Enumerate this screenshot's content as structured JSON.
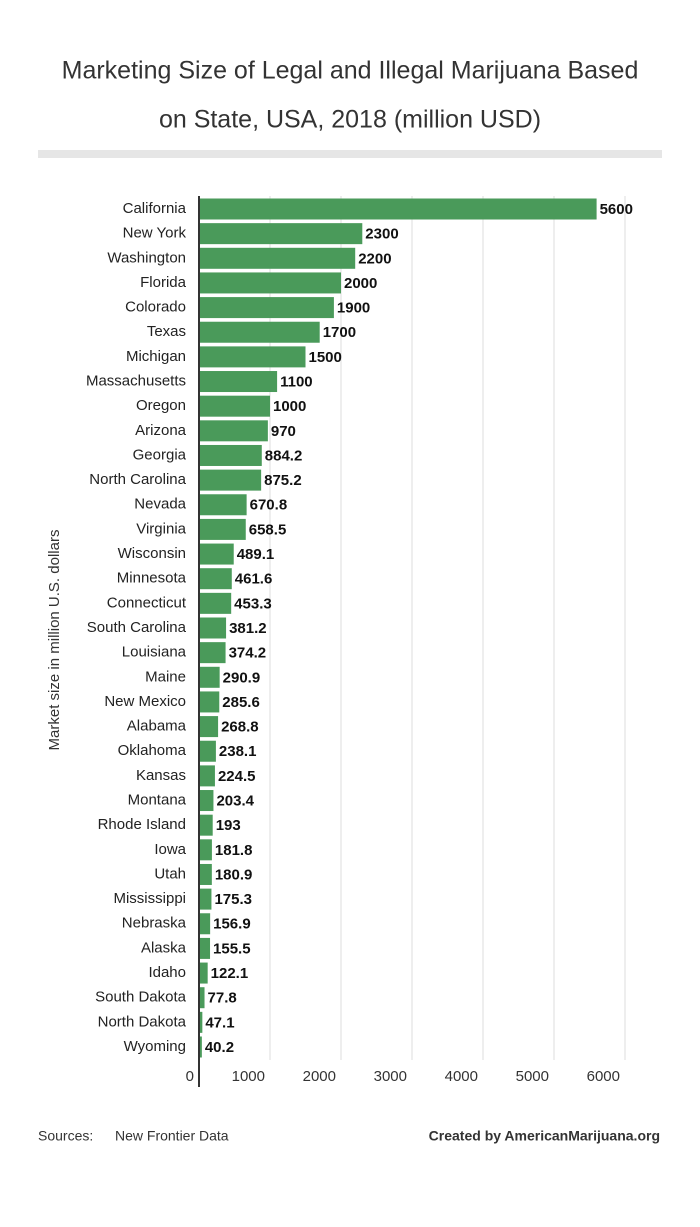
{
  "chart_data": {
    "type": "bar",
    "orientation": "horizontal",
    "title": [
      "Marketing Size of Legal and Illegal Marijuana Based",
      "on State, USA, 2018 (million USD)"
    ],
    "y_label": "Market size in million U.S. dollars",
    "categories": [
      "California",
      "New York",
      "Washington",
      "Florida",
      "Colorado",
      "Texas",
      "Michigan",
      "Massachusetts",
      "Oregon",
      "Arizona",
      "Georgia",
      "North Carolina",
      "Nevada",
      "Virginia",
      "Wisconsin",
      "Minnesota",
      "Connecticut",
      "South Carolina",
      "Louisiana",
      "Maine",
      "New Mexico",
      "Alabama",
      "Oklahoma",
      "Kansas",
      "Montana",
      "Rhode Island",
      "Iowa",
      "Utah",
      "Mississippi",
      "Nebraska",
      "Alaska",
      "Idaho",
      "South Dakota",
      "North Dakota",
      "Wyoming"
    ],
    "values": [
      5600,
      2300,
      2200,
      2000,
      1900,
      1700,
      1500,
      1100,
      1000,
      970,
      884.2,
      875.2,
      670.8,
      658.5,
      489.1,
      461.6,
      453.3,
      381.2,
      374.2,
      290.9,
      285.6,
      268.8,
      238.1,
      224.5,
      203.4,
      193,
      181.8,
      180.9,
      175.3,
      156.9,
      155.5,
      122.1,
      77.8,
      47.1,
      40.2
    ],
    "color": "#4a9a5a",
    "xlim": [
      0,
      6000
    ],
    "xticks": [
      0,
      1000,
      2000,
      3000,
      4000,
      5000,
      6000
    ],
    "grid": true,
    "source_label": "Sources:",
    "source": "New Frontier Data",
    "credit": "Created by AmericanMarijuana.org"
  }
}
